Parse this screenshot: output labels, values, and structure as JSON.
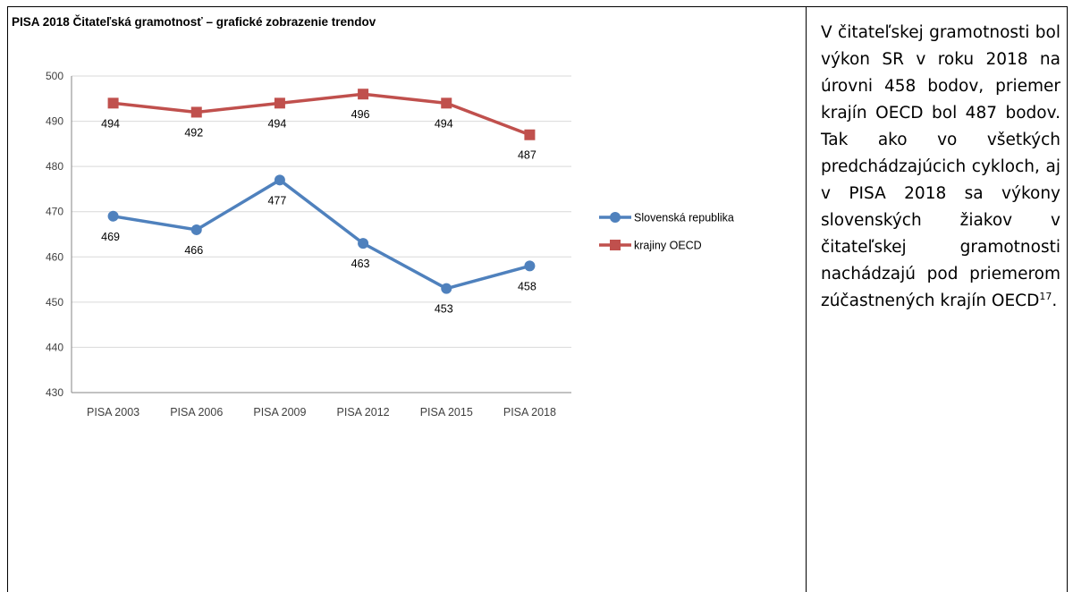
{
  "chart_data": {
    "type": "line",
    "title": "PISA 2018 Čitateľská gramotnosť – grafické zobrazenie trendov",
    "categories": [
      "PISA 2003",
      "PISA 2006",
      "PISA 2009",
      "PISA 2012",
      "PISA 2015",
      "PISA 2018"
    ],
    "ylim": [
      430,
      500
    ],
    "yticks": [
      430,
      440,
      450,
      460,
      470,
      480,
      490,
      500
    ],
    "grid": true,
    "legend_position": "right",
    "series": [
      {
        "name": "Slovenská republika",
        "values": [
          469,
          466,
          477,
          463,
          453,
          458
        ],
        "labels": [
          "469",
          "466",
          "477",
          "463",
          "453",
          "458"
        ],
        "color": "#4f81bd",
        "marker": "circle"
      },
      {
        "name": "krajiny OECD",
        "values": [
          494,
          492,
          494,
          496,
          494,
          487
        ],
        "labels": [
          "494",
          "492",
          "494",
          "496",
          "494",
          "487"
        ],
        "color": "#c0504d",
        "marker": "square"
      }
    ]
  },
  "side_text": {
    "main": "V čitateľskej gramotnosti bol výkon SR v roku 2018 na úrovni 458 bodov, priemer krajín OECD bol 487 bodov. Tak ako vo všetkých predchádzajúcich cykloch, aj v PISA 2018 sa výkony slovenských žiakov v čitateľskej gramotnosti nachádzajú pod priemerom zúčastnených krajín OECD",
    "footnote": "17",
    "end": "."
  }
}
